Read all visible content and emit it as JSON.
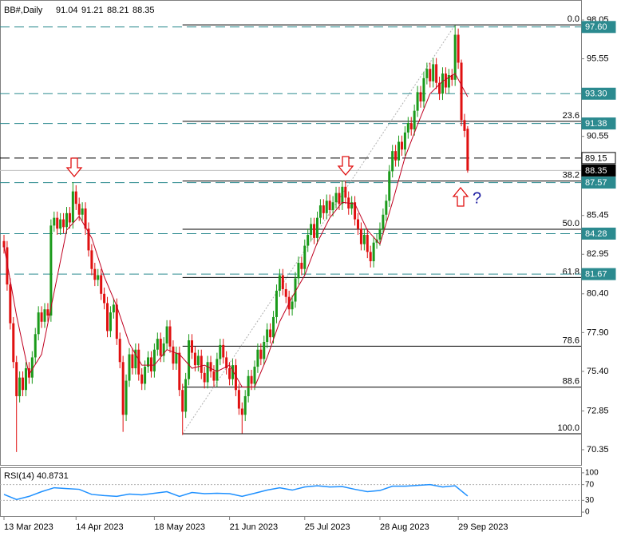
{
  "chart_data": [
    {
      "type": "candlestick",
      "title": "BB#,Daily",
      "header_values": [
        91.04,
        91.21,
        88.21,
        88.35
      ],
      "up_color": "#1a9a1a",
      "down_color": "#e01010",
      "open": [
        83.8,
        83.4,
        81.0,
        78.5,
        76.0,
        73.8,
        75.0,
        74.2,
        75.6,
        75.0,
        76.3,
        77.8,
        79.2,
        78.6,
        79.4,
        79.0,
        84.8,
        85.3,
        84.6,
        85.2,
        84.7,
        85.6,
        85.0,
        87.0,
        86.2,
        85.5,
        85.9,
        84.6,
        83.2,
        82.0,
        81.3,
        81.6,
        80.4,
        79.8,
        78.0,
        79.2,
        79.7,
        77.5,
        76.0,
        72.6,
        74.8,
        76.5,
        75.6,
        76.8,
        75.2,
        74.6,
        75.7,
        76.3,
        75.4,
        76.8,
        77.5,
        76.4,
        77.2,
        78.3,
        77.0,
        75.9,
        76.6,
        74.2,
        72.8,
        74.9,
        77.4,
        76.6,
        75.8,
        76.4,
        75.3,
        74.7,
        76.0,
        75.4,
        74.8,
        76.2,
        77.1,
        76.3,
        75.6,
        74.9,
        75.8,
        74.2,
        73.0,
        72.6,
        73.8,
        75.1,
        74.6,
        75.7,
        76.8,
        76.2,
        77.3,
        78.1,
        77.6,
        78.9,
        80.6,
        81.6,
        80.7,
        80.2,
        79.4,
        79.9,
        81.4,
        82.4,
        82.0,
        83.5,
        84.2,
        84.9,
        84.0,
        85.3,
        86.1,
        85.6,
        86.4,
        85.8,
        86.3,
        86.9,
        86.2,
        87.3,
        86.6,
        85.9,
        86.3,
        85.2,
        84.6,
        83.6,
        84.2,
        83.1,
        82.5,
        83.7,
        83.9,
        84.6,
        85.5,
        86.4,
        88.3,
        89.6,
        89.0,
        90.2,
        89.7,
        90.8,
        91.4,
        91.0,
        92.2,
        93.4,
        92.8,
        94.3,
        94.9,
        94.1,
        95.2,
        94.0,
        93.3,
        94.6,
        93.7,
        94.5,
        94.2,
        97.1,
        95.3,
        91.6,
        91.04
      ],
      "high": [
        84.2,
        83.8,
        81.4,
        78.9,
        76.4,
        75.4,
        75.4,
        76.0,
        76.0,
        76.7,
        78.2,
        79.6,
        79.6,
        79.8,
        79.8,
        85.2,
        85.7,
        85.7,
        85.6,
        85.6,
        86.0,
        86.0,
        87.6,
        87.4,
        86.6,
        86.3,
        86.3,
        85.0,
        83.6,
        82.4,
        82.0,
        82.0,
        80.8,
        80.2,
        79.6,
        80.1,
        80.1,
        77.9,
        76.4,
        75.2,
        76.9,
        76.9,
        77.2,
        77.2,
        75.6,
        76.1,
        76.7,
        76.7,
        77.2,
        77.9,
        77.9,
        77.6,
        78.7,
        78.7,
        77.4,
        77.0,
        77.0,
        74.6,
        75.3,
        77.8,
        77.8,
        77.0,
        76.8,
        76.8,
        75.7,
        76.4,
        76.4,
        75.8,
        76.6,
        77.5,
        77.5,
        76.7,
        76.0,
        76.2,
        76.2,
        74.6,
        73.4,
        74.2,
        75.5,
        75.5,
        76.1,
        77.2,
        77.2,
        77.7,
        78.5,
        78.5,
        79.3,
        81.0,
        82.0,
        82.0,
        81.1,
        80.6,
        80.3,
        81.8,
        82.8,
        82.8,
        83.9,
        84.6,
        85.3,
        85.3,
        85.7,
        86.5,
        86.5,
        86.8,
        86.8,
        86.7,
        87.3,
        87.3,
        87.7,
        87.7,
        87.0,
        86.7,
        86.7,
        85.6,
        85.0,
        84.6,
        84.6,
        83.5,
        84.1,
        84.3,
        85.0,
        85.9,
        86.8,
        88.7,
        90.0,
        90.0,
        90.6,
        90.6,
        91.2,
        91.8,
        91.8,
        92.6,
        93.8,
        93.8,
        94.7,
        95.3,
        95.3,
        95.6,
        95.6,
        94.4,
        95.0,
        95.0,
        94.9,
        94.9,
        97.7,
        97.5,
        95.5,
        92.0,
        91.21
      ],
      "low": [
        83.0,
        80.6,
        78.1,
        75.6,
        70.2,
        73.4,
        73.8,
        73.8,
        74.6,
        74.6,
        75.9,
        77.4,
        78.2,
        78.2,
        78.6,
        78.6,
        84.4,
        84.2,
        84.2,
        84.3,
        84.3,
        84.6,
        84.6,
        85.8,
        85.1,
        85.1,
        84.2,
        82.8,
        81.6,
        80.9,
        80.9,
        80.0,
        79.4,
        77.6,
        77.6,
        78.8,
        77.1,
        75.6,
        71.5,
        72.2,
        74.4,
        75.2,
        75.2,
        74.8,
        74.2,
        74.2,
        75.3,
        75.0,
        75.0,
        76.4,
        76.0,
        76.0,
        76.8,
        76.6,
        75.5,
        75.5,
        73.8,
        71.3,
        72.4,
        74.5,
        76.2,
        75.4,
        75.4,
        74.9,
        74.3,
        74.3,
        75.0,
        74.4,
        74.4,
        75.8,
        75.9,
        75.2,
        74.5,
        74.5,
        73.8,
        72.6,
        71.4,
        72.2,
        73.4,
        74.2,
        74.2,
        75.3,
        75.8,
        75.8,
        76.9,
        77.2,
        77.2,
        78.5,
        80.2,
        80.3,
        79.8,
        79.0,
        79.0,
        79.5,
        81.0,
        81.6,
        81.6,
        83.1,
        83.8,
        83.6,
        83.6,
        84.9,
        85.2,
        85.2,
        85.4,
        85.4,
        85.9,
        85.8,
        85.8,
        86.2,
        85.5,
        85.5,
        84.8,
        84.2,
        83.2,
        83.2,
        82.7,
        82.1,
        82.1,
        83.3,
        83.5,
        84.2,
        85.1,
        86.0,
        87.9,
        88.6,
        88.6,
        89.3,
        89.3,
        90.4,
        90.6,
        90.6,
        91.8,
        92.4,
        92.4,
        93.9,
        93.7,
        93.7,
        93.6,
        92.9,
        92.9,
        93.3,
        93.3,
        93.8,
        93.8,
        94.9,
        91.2,
        90.5,
        88.21
      ],
      "close": [
        83.4,
        81.0,
        78.5,
        76.0,
        73.8,
        75.0,
        74.2,
        75.6,
        75.0,
        76.3,
        77.8,
        79.2,
        78.6,
        79.4,
        79.0,
        84.8,
        85.3,
        84.6,
        85.2,
        84.7,
        85.6,
        85.0,
        87.0,
        86.2,
        85.5,
        85.9,
        84.6,
        83.2,
        82.0,
        81.3,
        81.6,
        80.4,
        79.8,
        78.0,
        79.2,
        79.7,
        77.5,
        76.0,
        72.6,
        74.8,
        76.5,
        75.6,
        76.8,
        75.2,
        74.6,
        75.7,
        76.3,
        75.4,
        76.8,
        77.5,
        76.4,
        77.2,
        78.3,
        77.0,
        75.9,
        76.6,
        74.2,
        72.8,
        74.9,
        77.4,
        76.6,
        75.8,
        76.4,
        75.3,
        74.7,
        76.0,
        75.4,
        74.8,
        76.2,
        77.1,
        76.3,
        75.6,
        74.9,
        75.8,
        74.2,
        73.0,
        72.6,
        73.8,
        75.1,
        74.6,
        75.7,
        76.8,
        76.2,
        77.3,
        78.1,
        77.6,
        78.9,
        80.6,
        81.6,
        80.7,
        80.2,
        79.4,
        79.9,
        81.4,
        82.4,
        82.0,
        83.5,
        84.2,
        84.9,
        84.0,
        85.3,
        86.1,
        85.6,
        86.4,
        85.8,
        86.3,
        86.9,
        86.2,
        87.3,
        86.6,
        85.9,
        86.3,
        85.2,
        84.6,
        83.6,
        84.2,
        83.1,
        82.5,
        83.7,
        83.9,
        84.6,
        85.5,
        86.4,
        88.3,
        89.6,
        89.0,
        90.2,
        89.7,
        90.8,
        91.4,
        91.0,
        92.2,
        93.4,
        92.8,
        94.3,
        94.9,
        94.1,
        95.2,
        94.0,
        93.3,
        94.6,
        93.7,
        94.5,
        94.2,
        97.1,
        95.3,
        91.6,
        90.9,
        88.35
      ],
      "ma": {
        "color": "#c00020",
        "x": [
          0,
          4,
          8,
          12,
          16,
          20,
          24,
          28,
          32,
          36,
          40,
          44,
          48,
          52,
          56,
          60,
          64,
          68,
          72,
          76,
          80,
          84,
          88,
          92,
          96,
          100,
          104,
          108,
          112,
          116,
          120,
          124,
          128,
          132,
          136,
          140,
          144,
          148
        ],
        "values": [
          83.5,
          79.0,
          75.2,
          76.5,
          80.5,
          84.5,
          85.4,
          84.0,
          81.5,
          79.6,
          77.2,
          75.8,
          75.8,
          76.8,
          76.5,
          75.6,
          75.8,
          75.4,
          75.8,
          74.4,
          74.4,
          76.3,
          78.6,
          80.2,
          81.6,
          83.7,
          85.3,
          86.3,
          86.2,
          84.5,
          83.6,
          86.3,
          89.2,
          91.3,
          93.3,
          94.1,
          94.6,
          93.1
        ]
      },
      "xlim": [
        0,
        182
      ],
      "xticks": [
        {
          "value": 0,
          "label": "13 Mar 2023"
        },
        {
          "value": 23,
          "label": "14 Apr 2023"
        },
        {
          "value": 48,
          "label": "18 May 2023"
        },
        {
          "value": 72,
          "label": "21 Jun 2023"
        },
        {
          "value": 96,
          "label": "25 Jul 2023"
        },
        {
          "value": 120,
          "label": "28 Aug 2023"
        },
        {
          "value": 145,
          "label": "29 Sep 2023"
        }
      ],
      "ylim": [
        69.37,
        99.34
      ],
      "yticks": [
        98.05,
        95.55,
        90.55,
        85.45,
        82.95,
        {
          "value": 80.4,
          "label": "80.40"
        },
        {
          "value": 77.9,
          "label": "77.90"
        },
        {
          "value": 75.4,
          "label": "75.40"
        },
        72.85,
        70.35
      ],
      "levels": [
        {
          "value": 97.6,
          "label": "97.60",
          "color": "#2b8a8f",
          "box_fill": "#2b8a8f",
          "text_color": "#ffffff",
          "dashed": true
        },
        {
          "value": 93.3,
          "label": "93.30",
          "color": "#2b8a8f",
          "box_fill": "#2b8a8f",
          "text_color": "#ffffff",
          "dashed": true
        },
        {
          "value": 91.38,
          "label": "91.38",
          "color": "#2b8a8f",
          "box_fill": "#2b8a8f",
          "text_color": "#ffffff",
          "dashed": true
        },
        {
          "value": 89.15,
          "label": "89.15",
          "color": "#000000",
          "box_fill": "#ffffff",
          "text_color": "#000000",
          "dashed": true
        },
        {
          "value": 88.35,
          "label": "88.35",
          "color": "#c0c0c0",
          "box_fill": "#000000",
          "text_color": "#ffffff",
          "dashed": false
        },
        {
          "value": 87.57,
          "label": "87.57",
          "color": "#2b8a8f",
          "box_fill": "#2b8a8f",
          "text_color": "#ffffff",
          "dashed": true
        },
        {
          "value": 84.28,
          "label": "84.28",
          "color": "#2b8a8f",
          "box_fill": "#2b8a8f",
          "text_color": "#ffffff",
          "dashed": true
        },
        {
          "value": 81.67,
          "label": "81.67",
          "color": "#2b8a8f",
          "box_fill": "#2b8a8f",
          "text_color": "#ffffff",
          "dashed": true
        }
      ],
      "fibo": {
        "high": 97.74,
        "low": 71.38,
        "from": 57,
        "to": 144,
        "levels": [
          {
            "value": 0,
            "label": "0.0"
          },
          23.6,
          38.2,
          {
            "value": 50,
            "label": "50.0"
          },
          61.8,
          78.6,
          88.6,
          {
            "value": 100,
            "label": "100.0"
          }
        ]
      },
      "annotation": "?"
    },
    {
      "type": "line",
      "title": "RSI(14) 40.8731",
      "color": "#1e90ff",
      "x": [
        0,
        4,
        8,
        12,
        16,
        20,
        24,
        28,
        32,
        36,
        40,
        44,
        48,
        52,
        56,
        60,
        64,
        68,
        72,
        76,
        80,
        84,
        88,
        92,
        96,
        100,
        104,
        108,
        112,
        116,
        120,
        124,
        128,
        132,
        136,
        140,
        144,
        148
      ],
      "values": [
        45,
        32,
        40,
        52,
        62,
        60,
        58,
        45,
        42,
        40,
        46,
        44,
        48,
        52,
        40,
        50,
        47,
        48,
        47,
        40,
        48,
        56,
        62,
        56,
        64,
        67,
        64,
        65,
        58,
        52,
        55,
        66,
        66,
        68,
        70,
        64,
        67,
        40.87
      ],
      "xlim": [
        0,
        182
      ],
      "ylim": [
        -10,
        112
      ],
      "yticks": [
        100,
        70,
        30,
        0
      ],
      "levels": [
        70,
        30
      ]
    }
  ]
}
